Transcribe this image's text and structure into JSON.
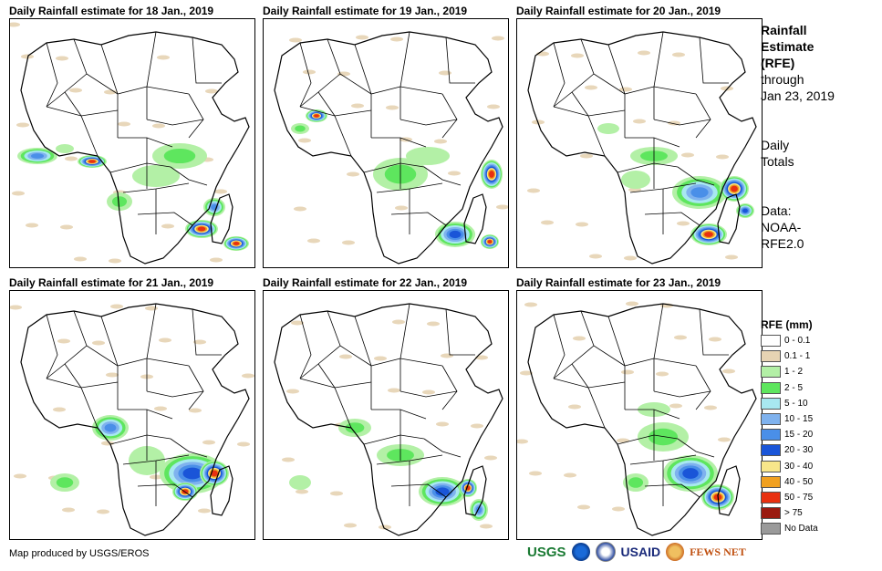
{
  "panels": [
    {
      "title": "Daily Rainfall estimate for 18 Jan., 2019"
    },
    {
      "title": "Daily Rainfall estimate for 19 Jan., 2019"
    },
    {
      "title": "Daily Rainfall estimate for 20 Jan., 2019"
    },
    {
      "title": "Daily Rainfall estimate for 21 Jan., 2019"
    },
    {
      "title": "Daily Rainfall estimate for 22 Jan., 2019"
    },
    {
      "title": "Daily Rainfall estimate for 23 Jan., 2019"
    }
  ],
  "side": {
    "title_line1": "Rainfall",
    "title_line2": "Estimate",
    "title_line3": "(RFE)",
    "through": "through",
    "date": "Jan 23, 2019",
    "daily": "Daily",
    "totals": "Totals",
    "data_label": "Data:",
    "source1": "NOAA-",
    "source2": "RFE2.0"
  },
  "legend": {
    "title": "RFE (mm)",
    "items": [
      {
        "label": "0 - 0.1",
        "color": "#ffffff"
      },
      {
        "label": "0.1 - 1",
        "color": "#e6d3b3"
      },
      {
        "label": "1 - 2",
        "color": "#b3f0a6"
      },
      {
        "label": "2 - 5",
        "color": "#5ee65e"
      },
      {
        "label": "5 - 10",
        "color": "#a8e8f0"
      },
      {
        "label": "10 - 15",
        "color": "#7fb2ee"
      },
      {
        "label": "15 - 20",
        "color": "#4a8fe8"
      },
      {
        "label": "20 - 30",
        "color": "#1a55d8"
      },
      {
        "label": "30 - 40",
        "color": "#f8e68a"
      },
      {
        "label": "40 - 50",
        "color": "#f0a020"
      },
      {
        "label": "50 - 75",
        "color": "#e83010"
      },
      {
        "label": "> 75",
        "color": "#9a1a10"
      },
      {
        "label": "No Data",
        "color": "#9a9a9a"
      }
    ]
  },
  "credit": "Map produced by USGS/EROS",
  "logos": {
    "usgs": "USGS",
    "usaid": "USAID",
    "fews": "FEWS NET"
  }
}
